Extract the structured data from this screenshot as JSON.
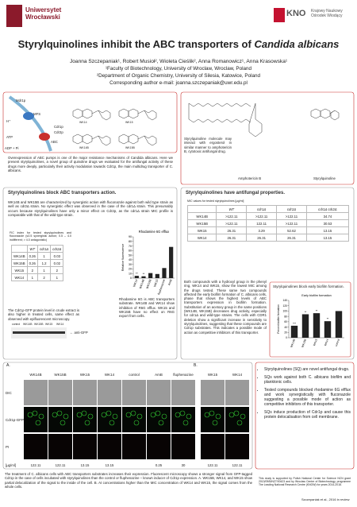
{
  "header": {
    "university": [
      "Uniwersytet",
      "Wrocławski"
    ],
    "know": "KNO",
    "know_sub": [
      "Krajowy Naukowy",
      "Ośrodek Wiodący"
    ]
  },
  "title": "Styrylquinolines inhibit the ABC transporters of",
  "title_italic": "Candida albicans",
  "authors": "Joanna Szczepaniak¹, Robert Musioł², Wioleta Cieślik², Anna Romanowicz¹, Anna Krasowska¹",
  "affiliations": [
    "¹Faculty of Biotechnology, University of Wroclaw, Wroclaw, Poland",
    "²Department of Organic Chemistry, University of Silesia, Katowice, Poland"
  ],
  "contact": "Corresponding author e-mail: joanna.szczepaniak@uwr.edu.pl",
  "mechanism": {
    "labels": [
      "Mdr1p",
      "MFS",
      "H⁺",
      "ATP",
      "ADP + Pi",
      "ABC",
      "Cdr1p",
      "Cdr2p"
    ],
    "compounds": [
      "WK14",
      "WK15",
      "WK14B",
      "WK15B"
    ]
  },
  "intro": "Overexpression of ABC pumps is one of the major resistance mechanisms of Candida albicans. Here we present styrylquinolines, a novel group of quinoline drugs we evaluated for the antifungal activity of these drugs more deeply, particularly their activity modulation towards Cdr1p, the main multidrug transporter of C. albicans.",
  "structures": {
    "text": "Styrylquinoline molecule may interact with ergosterol in similar manner to amphotericin B, cytotoxic antifungal drug.",
    "labels": [
      "Amphotericin B",
      "Styrylquinoline"
    ]
  },
  "abc_section": {
    "heading": "Styrylquinolines block ABC transporters action.",
    "text": "WK14B and WK15B are characterized by synergistic action with fluconazole against both wild type strain as well as cdr2Δ strain. No synergistic effect was observed in the case of the cdr1Δ strain. This presumably occurs because styrylquinolines have only a minor effect on Cdr2p, as the cdr1Δ strain MIC profile is comparable with that of the wild-type strain.",
    "fic_caption": "FIC index for tested styrylquinolines and fluconazole (≤0.5 synergistic action; 0.5 – 4.0 indifferent; > 4.0 antagonistic)",
    "fic_table": {
      "header": [
        "",
        "WT",
        "cdr1Δ",
        "cdr2Δ"
      ],
      "rows": [
        [
          "WK14B",
          "0.26",
          "1",
          "0.03"
        ],
        [
          "WK15B",
          "0.26",
          "1.2",
          "0.02"
        ],
        [
          "WK15",
          "2",
          "1",
          "2"
        ],
        [
          "WK14",
          "1",
          "2",
          "1"
        ]
      ]
    },
    "rhodamine_chart": {
      "type": "bar",
      "title": "Rhodamine 6G efflux",
      "y_label": "Relative fluorescence",
      "categories": [
        "WK14",
        "WK14B",
        "WK15B",
        "WK15",
        "fluphenazine",
        "AmB"
      ],
      "values": [
        5,
        4,
        11,
        9,
        22,
        68
      ],
      "significance": [
        "**",
        "**",
        null,
        null,
        null,
        null
      ],
      "color": "#222222",
      "ylim": [
        0,
        90
      ],
      "yticks": [
        0,
        10,
        20,
        30,
        40,
        50,
        60,
        70,
        80,
        90
      ]
    },
    "rhodamine_caption": "Rhodamine 6G is ABC transporters substrate. WK14B and WK14 show inhibition of R6G efflux. WK15 and WK15B have no effect on R6G export from cells.",
    "blot": {
      "text": "The Cdr1p-GFP protein level in crude extract is also higher in treated cells, same effect as observed with epifluorescent microscopy.",
      "lanes": [
        "control",
        "WK14B",
        "WK15B",
        "WK15",
        "WK14"
      ],
      "antibody": "← anti-GFP"
    }
  },
  "antifungal_section": {
    "heading": "Styrylquinolines have antifungal properties.",
    "mic_caption": "MIC values for tested styrylquinolines [µg/ml]",
    "mic_table": {
      "header": [
        "",
        "WT",
        "cdr1Δ",
        "cdr2Δ",
        "cdr1Δ cdr2Δ"
      ],
      "rows": [
        [
          "WK14B",
          ">122.11",
          ">122.11",
          ">122.11",
          "34.74"
        ],
        [
          "WK15B",
          ">122.11",
          "122.11",
          ">122.11",
          "30.53"
        ],
        [
          "WK15",
          "26.31",
          "3.29",
          "52.62",
          "13.15"
        ],
        [
          "WK14",
          "26.31",
          "26.31",
          "26.31",
          "13.15"
        ]
      ]
    },
    "text": "Both compounds with a hydroxyl group in the phenyl ring, WK14 and WK15, show the lowest MIC among the drugs tested. These same two compounds affected the early biofilm formation of C. albicans cells, phase that shows the highest levels of ABC transporters expression in biofilm formation. Substitution of an acetoxy group in the same positions (WK14B, WK15B) decreases drug activity, especially for cdr1Δ and wild-type strains. The cells with CDR1 deletion show a significant increase in sensitivity to styrylquinolines, suggesting that these compounds are Cdr1p substrates. This indicates a possible mode of action as competitive inhibitors of this transporter.",
    "biofilm": {
      "heading": "Styrylquinolines block early biofilm formation.",
      "chart": {
        "type": "bar",
        "title": "Early biofilm formation",
        "y_label": "Percent biofilm formation",
        "categories": [
          "WK14B",
          "WK15B",
          "WK15",
          "WK14",
          "control"
        ],
        "values": [
          45,
          88,
          92,
          62,
          100
        ],
        "significance": [
          "***",
          "**",
          "**",
          "**",
          null
        ],
        "color": "#222222",
        "ylim": [
          0,
          140
        ],
        "yticks": [
          0,
          20,
          40,
          60,
          80,
          100,
          120,
          140
        ]
      }
    }
  },
  "microscopy": {
    "panels": [
      "A.",
      "B."
    ],
    "columns": [
      {
        "label": "WK14B",
        "dose": "122.11"
      },
      {
        "label": "WK15B",
        "dose": "122.11"
      },
      {
        "label": "WK15",
        "dose": "13.15"
      },
      {
        "label": "WK14",
        "dose": "13.15"
      },
      {
        "label": "control"
      },
      {
        "label": "AmB",
        "dose": "0.25"
      },
      {
        "label": "fluphenazine",
        "dose": "30"
      },
      {
        "label": "WK15",
        "dose": "122.11"
      },
      {
        "label": "WK14",
        "dose": "122.11"
      }
    ],
    "rows": [
      "DIC",
      "Cdr1p-GFP",
      "PI"
    ],
    "unit": "[µg/ml]",
    "caption": "The treatment of C. albicans cells with ABC transporters substrates increases their expression. Fluorescent microscopy shows a stronger signal from GFP-tagged Cdr1p in the case of cells incubated with styrylquinolines than the control or fluphenazine – known inducer of Cdr1p expression. A. WK15B, WK14, and WK15 show partial delocalization of the signal to the inside of the cell. B. At concentrations higher than the MIC concentration of WK14 and WK15, the signal comes from the whole cells."
  },
  "conclusions": [
    "Styrylquinolines (SQ) are novel antifungal drugs.",
    "SQs work against both C. albicans biofilm and planktonic cells.",
    "Tested compounds blocked rhodamine 6G efflux and work synergistically with fluconazole suggesting a possible mode of action as competitive inhibitors of this transporter.",
    "SQs induce production of Cdr1p and cause this protein delocalisation from cell membrane."
  ],
  "funding": "This study is supported by Polish National Center for Science NCN grant 2013/09/B/NZ7/00423 and by Wroclaw Centre of Biotechnology, programme The Leading National Research Centre (KNOW) for years 2014-2018.",
  "citation": "Szczepaniak et al., 2016 in review"
}
